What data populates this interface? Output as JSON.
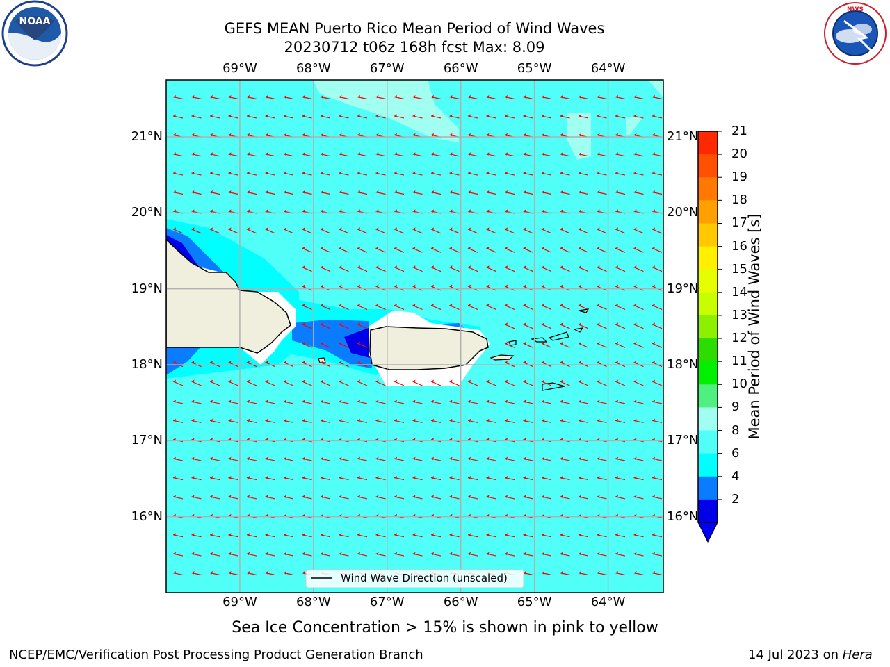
{
  "title": {
    "line1": "GEFS MEAN Puerto Rico Mean Period of Wind Waves",
    "line2": "20230712 t06z 168h fcst   Max: 8.09"
  },
  "axes": {
    "lon_labels": [
      "69°W",
      "68°W",
      "67°W",
      "66°W",
      "65°W",
      "64°W"
    ],
    "lat_labels": [
      "21°N",
      "20°N",
      "19°N",
      "18°N",
      "17°N",
      "16°N"
    ],
    "lon_range": [
      -70.0,
      -63.25
    ],
    "lat_range": [
      15.0,
      21.75
    ],
    "grid": true
  },
  "colorbar": {
    "label": "Mean Period of Wind Waves [s]",
    "ticks": [
      "21",
      "20",
      "19",
      "18",
      "17",
      "16",
      "15",
      "14",
      "13",
      "12",
      "11",
      "10",
      "9",
      "8",
      "6",
      "4",
      "2"
    ],
    "colors": [
      "#ff0000",
      "#ff2800",
      "#ff5000",
      "#ff7800",
      "#ffa000",
      "#ffc800",
      "#fff000",
      "#e6ff00",
      "#c8ff00",
      "#8cf000",
      "#2ddc00",
      "#00f000",
      "#50f080",
      "#a0fff0",
      "#50fff8",
      "#00ffff",
      "#0a7cff",
      "#0000e8"
    ],
    "extend_color": "#0000f5"
  },
  "legend": {
    "label": "Wind Wave Direction (unscaled)"
  },
  "caption": "Sea Ice Concentration > 15% is shown in pink to yellow",
  "footer": {
    "left": "NCEP/EMC/Verification Post Processing Product Generation Branch",
    "right_prefix": "14 Jul 2023 on ",
    "right_host": "Hera"
  },
  "logos": {
    "left": "NOAA",
    "right": "NATIONAL WEATHER SERVICE"
  },
  "colors": {
    "ocean": "#50fff8",
    "light_ocean": "#a0fff0",
    "land": "#f0eedc",
    "arrow": "#ff0000"
  }
}
